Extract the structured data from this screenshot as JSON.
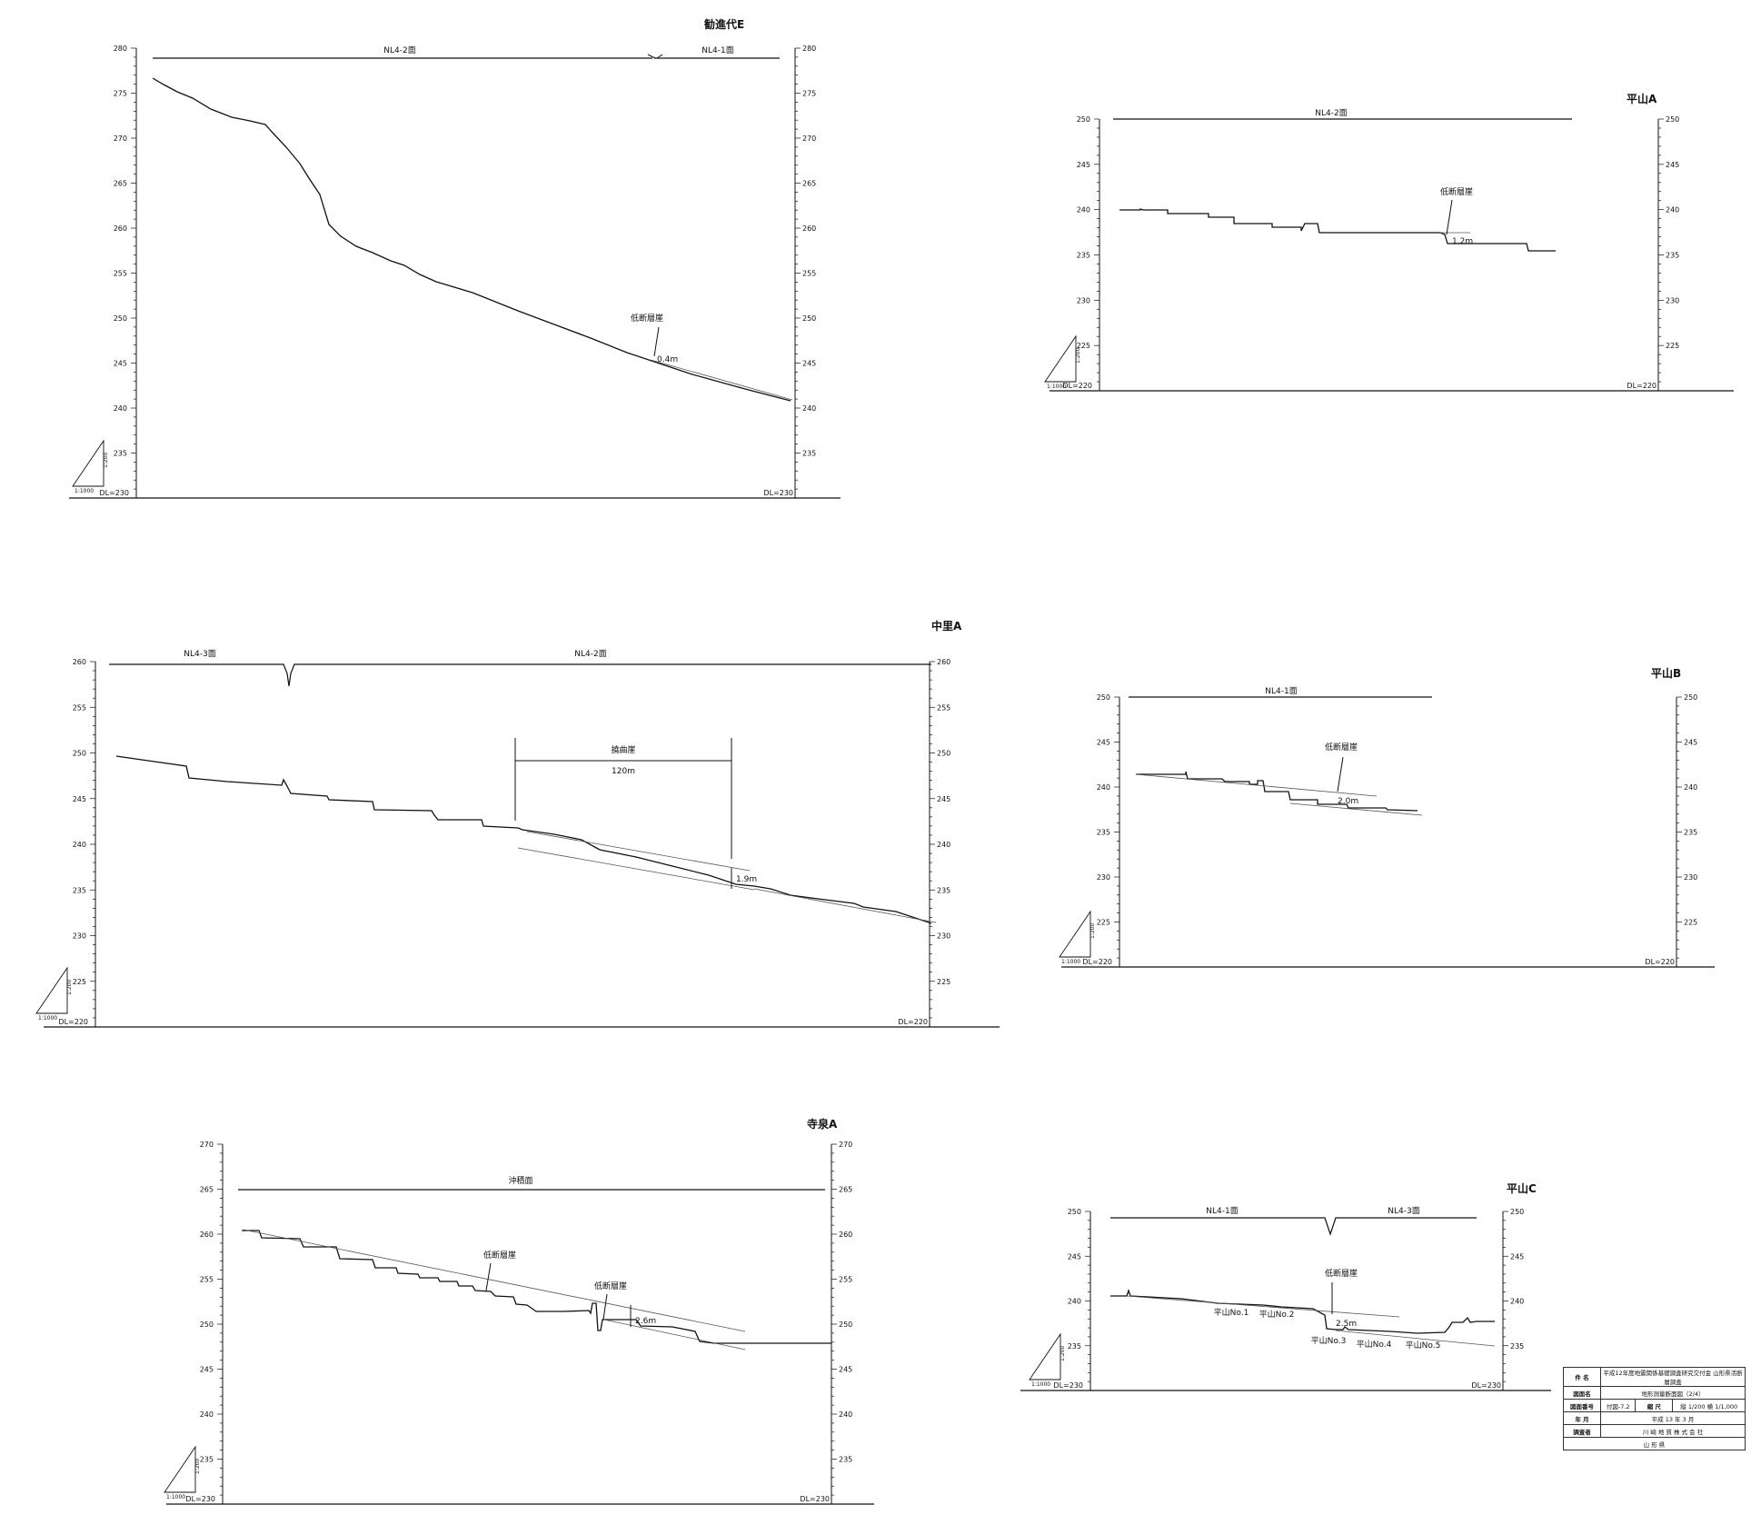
{
  "panels": [
    {
      "title": "勧進代E",
      "ymin": 230,
      "ymax": 280,
      "yticks": [
        235,
        240,
        245,
        250,
        255,
        260,
        265,
        270,
        275,
        280
      ],
      "dl_label": "DL=230",
      "surfaces": [
        {
          "label": "NL4-2面"
        },
        {
          "label": "NL4-1面"
        }
      ],
      "annotations": [
        {
          "text": "低断層崖"
        },
        {
          "text": "0.4m"
        }
      ],
      "scale": {
        "v": "1:200",
        "h": "1:1000"
      }
    },
    {
      "title": "平山A",
      "ymin": 220,
      "ymax": 250,
      "yticks": [
        225,
        230,
        235,
        240,
        245,
        250
      ],
      "dl_label": "DL=220",
      "surfaces": [
        {
          "label": "NL4-2面"
        }
      ],
      "annotations": [
        {
          "text": "低断層崖"
        },
        {
          "text": "1.2m"
        }
      ],
      "scale": {
        "v": "1:200",
        "h": "1:1000"
      }
    },
    {
      "title": "中里A",
      "ymin": 220,
      "ymax": 260,
      "yticks": [
        225,
        230,
        235,
        240,
        245,
        250,
        255,
        260
      ],
      "dl_label": "DL=220",
      "surfaces": [
        {
          "label": "NL4-3面"
        },
        {
          "label": "NL4-2面"
        }
      ],
      "annotations": [
        {
          "text": "撓曲崖"
        },
        {
          "text": "120m"
        },
        {
          "text": "1.9m"
        }
      ],
      "scale": {
        "v": "1:200",
        "h": "1:1000"
      }
    },
    {
      "title": "平山B",
      "ymin": 220,
      "ymax": 250,
      "yticks": [
        225,
        230,
        235,
        240,
        245,
        250
      ],
      "dl_label": "DL=220",
      "surfaces": [
        {
          "label": "NL4-1面"
        }
      ],
      "annotations": [
        {
          "text": "低断層崖"
        },
        {
          "text": "2.0m"
        }
      ],
      "scale": {
        "v": "1:200",
        "h": "1:1000"
      }
    },
    {
      "title": "寺泉A",
      "ymin": 230,
      "ymax": 270,
      "yticks": [
        235,
        240,
        245,
        250,
        255,
        260,
        265,
        270
      ],
      "dl_label": "DL=230",
      "surfaces": [
        {
          "label": "沖積面"
        }
      ],
      "annotations": [
        {
          "text": "低断層崖"
        },
        {
          "text": "低断層崖"
        },
        {
          "text": "2.6m"
        }
      ],
      "scale": {
        "v": "1:200",
        "h": "1:1000"
      }
    },
    {
      "title": "平山C",
      "ymin": 230,
      "ymax": 250,
      "yticks": [
        235,
        240,
        245,
        250
      ],
      "dl_label": "DL=230",
      "surfaces": [
        {
          "label": "NL4-1面"
        },
        {
          "label": "NL4-3面"
        }
      ],
      "annotations": [
        {
          "text": "低断層崖"
        },
        {
          "text": "2.5m"
        },
        {
          "text": "平山No.1"
        },
        {
          "text": "平山No.2"
        },
        {
          "text": "平山No.3"
        },
        {
          "text": "平山No.4"
        },
        {
          "text": "平山No.5"
        }
      ],
      "scale": {
        "v": "1:200",
        "h": "1:1000"
      }
    }
  ],
  "title_block": {
    "rows": [
      {
        "label": "件 名",
        "value": "平成12年度地震関係基礎調査研究交付金 山形県活断層調査"
      },
      {
        "label": "図面名",
        "value": "地形測量断面図（2/4）"
      },
      {
        "label": "図面番号",
        "value": "付図-7.2",
        "label2": "縮 尺",
        "value2": "縦 1/200 横 1/1,000"
      },
      {
        "label": "年 月",
        "value": "平成 13 年 3 月"
      },
      {
        "label": "調査者",
        "value": "川 崎 地 質 株 式 会 社"
      }
    ],
    "footer": "山 形 県"
  }
}
